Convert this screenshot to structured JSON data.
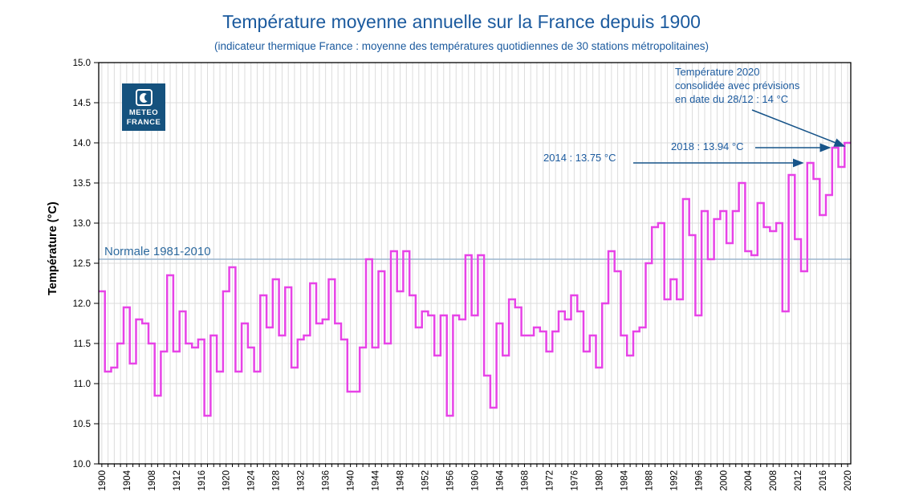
{
  "header": {
    "title": "Température moyenne annuelle sur la France depuis 1900",
    "subtitle": "(indicateur thermique France : moyenne des températures quotidiennes de 30 stations métropolitaines)"
  },
  "logo": {
    "line1": "METEO",
    "line2": "FRANCE"
  },
  "chart_data": {
    "type": "line",
    "subtype": "step",
    "title": "Température moyenne annuelle sur la France depuis 1900",
    "xlabel": "",
    "ylabel": "Température (°C)",
    "ylim": [
      10.0,
      15.0
    ],
    "xlim": [
      1899.5,
      2020.5
    ],
    "grid": true,
    "y_ticks": [
      10.0,
      10.5,
      11.0,
      11.5,
      12.0,
      12.5,
      13.0,
      13.5,
      14.0,
      14.5,
      15.0
    ],
    "x_ticks": [
      1900,
      1904,
      1908,
      1912,
      1916,
      1920,
      1924,
      1928,
      1932,
      1936,
      1940,
      1944,
      1948,
      1952,
      1956,
      1960,
      1964,
      1968,
      1972,
      1976,
      1980,
      1984,
      1988,
      1992,
      1996,
      2000,
      2004,
      2008,
      2012,
      2016,
      2020
    ],
    "year_start": 1900,
    "years": [
      1900,
      1901,
      1902,
      1903,
      1904,
      1905,
      1906,
      1907,
      1908,
      1909,
      1910,
      1911,
      1912,
      1913,
      1914,
      1915,
      1916,
      1917,
      1918,
      1919,
      1920,
      1921,
      1922,
      1923,
      1924,
      1925,
      1926,
      1927,
      1928,
      1929,
      1930,
      1931,
      1932,
      1933,
      1934,
      1935,
      1936,
      1937,
      1938,
      1939,
      1940,
      1941,
      1942,
      1943,
      1944,
      1945,
      1946,
      1947,
      1948,
      1949,
      1950,
      1951,
      1952,
      1953,
      1954,
      1955,
      1956,
      1957,
      1958,
      1959,
      1960,
      1961,
      1962,
      1963,
      1964,
      1965,
      1966,
      1967,
      1968,
      1969,
      1970,
      1971,
      1972,
      1973,
      1974,
      1975,
      1976,
      1977,
      1978,
      1979,
      1980,
      1981,
      1982,
      1983,
      1984,
      1985,
      1986,
      1987,
      1988,
      1989,
      1990,
      1991,
      1992,
      1993,
      1994,
      1995,
      1996,
      1997,
      1998,
      1999,
      2000,
      2001,
      2002,
      2003,
      2004,
      2005,
      2006,
      2007,
      2008,
      2009,
      2010,
      2011,
      2012,
      2013,
      2014,
      2015,
      2016,
      2017,
      2018,
      2019,
      2020
    ],
    "values": [
      12.15,
      11.15,
      11.2,
      11.5,
      11.95,
      11.25,
      11.8,
      11.75,
      11.5,
      10.85,
      11.4,
      12.35,
      11.4,
      11.9,
      11.5,
      11.45,
      11.55,
      10.6,
      11.6,
      11.15,
      12.15,
      12.45,
      11.15,
      11.75,
      11.45,
      11.15,
      12.1,
      11.7,
      12.3,
      11.6,
      12.2,
      11.2,
      11.55,
      11.6,
      12.25,
      11.75,
      11.8,
      12.3,
      11.75,
      11.55,
      10.9,
      10.9,
      11.45,
      12.55,
      11.45,
      12.4,
      11.5,
      12.65,
      12.15,
      12.65,
      12.1,
      11.7,
      11.9,
      11.85,
      11.35,
      11.85,
      10.6,
      11.85,
      11.8,
      12.6,
      11.85,
      12.6,
      11.1,
      10.7,
      11.75,
      11.35,
      12.05,
      11.95,
      11.6,
      11.6,
      11.7,
      11.65,
      11.4,
      11.65,
      11.9,
      11.8,
      12.1,
      11.9,
      11.4,
      11.6,
      11.2,
      12.0,
      12.65,
      12.4,
      11.6,
      11.35,
      11.65,
      11.7,
      12.5,
      12.95,
      13.0,
      12.05,
      12.3,
      12.05,
      13.3,
      12.85,
      11.85,
      13.15,
      12.55,
      13.05,
      13.15,
      12.75,
      13.15,
      13.5,
      12.65,
      12.6,
      13.25,
      12.95,
      12.9,
      13.0,
      11.9,
      13.6,
      12.8,
      12.4,
      13.75,
      13.55,
      13.1,
      13.35,
      13.94,
      13.7,
      14.0
    ],
    "normale": {
      "label": "Normale 1981-2010",
      "value": 12.55
    },
    "annotations": {
      "a2014": {
        "text": "2014 : 13.75 °C",
        "year": 2014,
        "value": 13.75
      },
      "a2018": {
        "text": "2018 : 13.94 °C",
        "year": 2018,
        "value": 13.94
      },
      "a2020": {
        "line1": "Température 2020",
        "line2": "consolidée avec prévisions",
        "line3": "en date du 28/12 : 14 °C",
        "year": 2020,
        "value": 14.0
      }
    },
    "colors": {
      "series": "#e743e7",
      "normale_line": "#9cb6ce",
      "accent_blue": "#1b5a9e",
      "arrow": "#175489",
      "grid": "#dcdcdc",
      "axis": "#000000",
      "logo_bg": "#15527e"
    },
    "legend_position": "none"
  }
}
